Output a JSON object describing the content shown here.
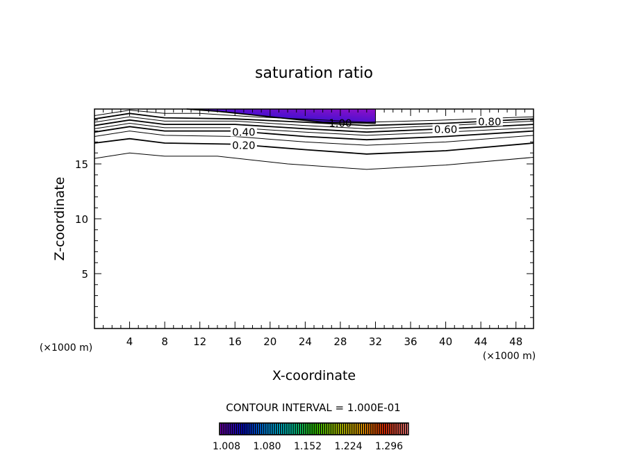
{
  "chart_data": {
    "type": "contour",
    "title": "saturation ratio",
    "xlabel": "X-coordinate",
    "ylabel": "Z-coordinate",
    "x_unit": "(×1000 m)",
    "xlim": [
      0,
      50
    ],
    "ylim": [
      0,
      20
    ],
    "xticks": [
      4,
      8,
      12,
      16,
      20,
      24,
      28,
      32,
      36,
      40,
      44,
      48
    ],
    "yticks": [
      5,
      10,
      15
    ],
    "contour_interval_text": "CONTOUR INTERVAL = 1.000E-01",
    "contours": [
      {
        "level": "0.10",
        "labeled": false,
        "points": [
          [
            0,
            15.5
          ],
          [
            4,
            16.0
          ],
          [
            8,
            15.7
          ],
          [
            14,
            15.7
          ],
          [
            22,
            15.0
          ],
          [
            31,
            14.5
          ],
          [
            40,
            14.9
          ],
          [
            50,
            15.6
          ]
        ]
      },
      {
        "level": "0.20",
        "labeled": true,
        "points": [
          [
            0,
            16.9
          ],
          [
            4,
            17.3
          ],
          [
            8,
            16.9
          ],
          [
            16,
            16.8
          ],
          [
            24,
            16.3
          ],
          [
            31,
            15.9
          ],
          [
            40,
            16.2
          ],
          [
            50,
            16.9
          ]
        ]
      },
      {
        "level": "0.30",
        "labeled": false,
        "points": [
          [
            0,
            17.5
          ],
          [
            4,
            18.0
          ],
          [
            8,
            17.6
          ],
          [
            16,
            17.5
          ],
          [
            24,
            17.0
          ],
          [
            31,
            16.7
          ],
          [
            40,
            17.0
          ],
          [
            50,
            17.6
          ]
        ]
      },
      {
        "level": "0.40",
        "labeled": true,
        "points": [
          [
            0,
            17.9
          ],
          [
            4,
            18.4
          ],
          [
            8,
            18.0
          ],
          [
            16,
            18.0
          ],
          [
            24,
            17.5
          ],
          [
            31,
            17.2
          ],
          [
            40,
            17.5
          ],
          [
            50,
            18.0
          ]
        ]
      },
      {
        "level": "0.50",
        "labeled": false,
        "points": [
          [
            0,
            18.2
          ],
          [
            4,
            18.7
          ],
          [
            8,
            18.3
          ],
          [
            16,
            18.3
          ],
          [
            24,
            17.9
          ],
          [
            31,
            17.6
          ],
          [
            40,
            17.9
          ],
          [
            50,
            18.3
          ]
        ]
      },
      {
        "level": "0.60",
        "labeled": true,
        "points": [
          [
            0,
            18.5
          ],
          [
            4,
            19.0
          ],
          [
            8,
            18.6
          ],
          [
            16,
            18.6
          ],
          [
            24,
            18.2
          ],
          [
            31,
            17.9
          ],
          [
            40,
            18.2
          ],
          [
            50,
            18.6
          ]
        ]
      },
      {
        "level": "0.70",
        "labeled": false,
        "points": [
          [
            0,
            18.8
          ],
          [
            4,
            19.3
          ],
          [
            8,
            18.9
          ],
          [
            16,
            18.9
          ],
          [
            24,
            18.5
          ],
          [
            31,
            18.2
          ],
          [
            40,
            18.5
          ],
          [
            50,
            18.9
          ]
        ]
      },
      {
        "level": "0.80",
        "labeled": true,
        "points": [
          [
            0,
            19.1
          ],
          [
            4,
            19.6
          ],
          [
            8,
            19.2
          ],
          [
            16,
            19.1
          ],
          [
            24,
            18.8
          ],
          [
            31,
            18.5
          ],
          [
            40,
            18.7
          ],
          [
            50,
            19.1
          ]
        ]
      },
      {
        "level": "0.90",
        "labeled": false,
        "points": [
          [
            0,
            19.4
          ],
          [
            4,
            19.9
          ],
          [
            8,
            19.6
          ],
          [
            12,
            19.6
          ],
          [
            18,
            19.3
          ],
          [
            26,
            19.0
          ],
          [
            31,
            18.8
          ],
          [
            40,
            19.0
          ],
          [
            50,
            19.3
          ]
        ]
      },
      {
        "level": "1.00",
        "labeled": true,
        "points": [
          [
            10.5,
            20
          ],
          [
            14,
            19.8
          ],
          [
            20,
            19.3
          ],
          [
            26,
            18.8
          ],
          [
            32,
            18.7
          ]
        ]
      }
    ],
    "colorbar": {
      "ticks": [
        "1.008",
        "1.080",
        "1.152",
        "1.224",
        "1.296"
      ],
      "min": 1.0,
      "max": 1.32,
      "colors": [
        "#7a00c0",
        "#0010e0",
        "#00a0ff",
        "#00e0c0",
        "#30e000",
        "#c0e000",
        "#ffb000",
        "#ff3000",
        "#ff8080"
      ]
    },
    "supersaturation_fill": {
      "colors": [
        "#8a10c0",
        "#3010d0",
        "#2000e0"
      ]
    }
  }
}
